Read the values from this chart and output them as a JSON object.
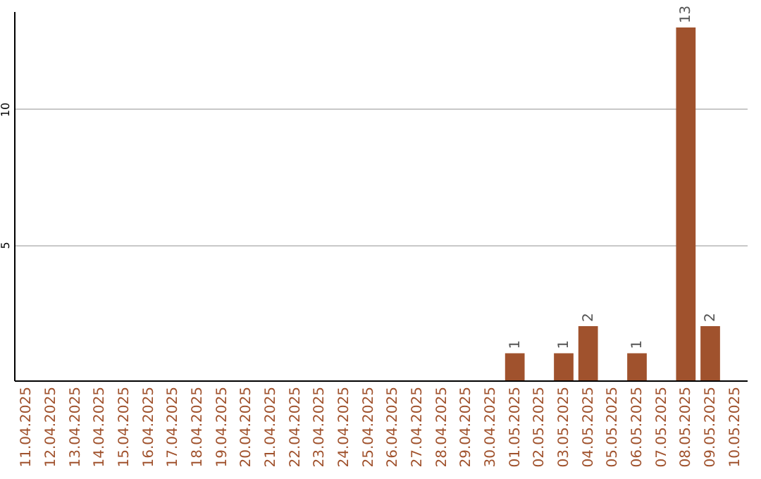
{
  "chart_data": {
    "type": "bar",
    "categories": [
      "11.04.2025",
      "12.04.2025",
      "13.04.2025",
      "14.04.2025",
      "15.04.2025",
      "16.04.2025",
      "17.04.2025",
      "18.04.2025",
      "19.04.2025",
      "20.04.2025",
      "21.04.2025",
      "22.04.2025",
      "23.04.2025",
      "24.04.2025",
      "25.04.2025",
      "26.04.2025",
      "27.04.2025",
      "28.04.2025",
      "29.04.2025",
      "30.04.2025",
      "01.05.2025",
      "02.05.2025",
      "03.05.2025",
      "04.05.2025",
      "05.05.2025",
      "06.05.2025",
      "07.05.2025",
      "08.05.2025",
      "09.05.2025",
      "10.05.2025"
    ],
    "values": [
      null,
      null,
      null,
      null,
      null,
      null,
      null,
      null,
      null,
      null,
      null,
      null,
      null,
      null,
      null,
      null,
      null,
      null,
      null,
      null,
      1,
      null,
      1,
      2,
      null,
      1,
      null,
      13,
      2,
      null
    ],
    "color": "#a0522d",
    "data_labels": true,
    "ylim": [
      0,
      13.6
    ],
    "yticks": [
      5,
      10
    ],
    "grid": "y"
  }
}
